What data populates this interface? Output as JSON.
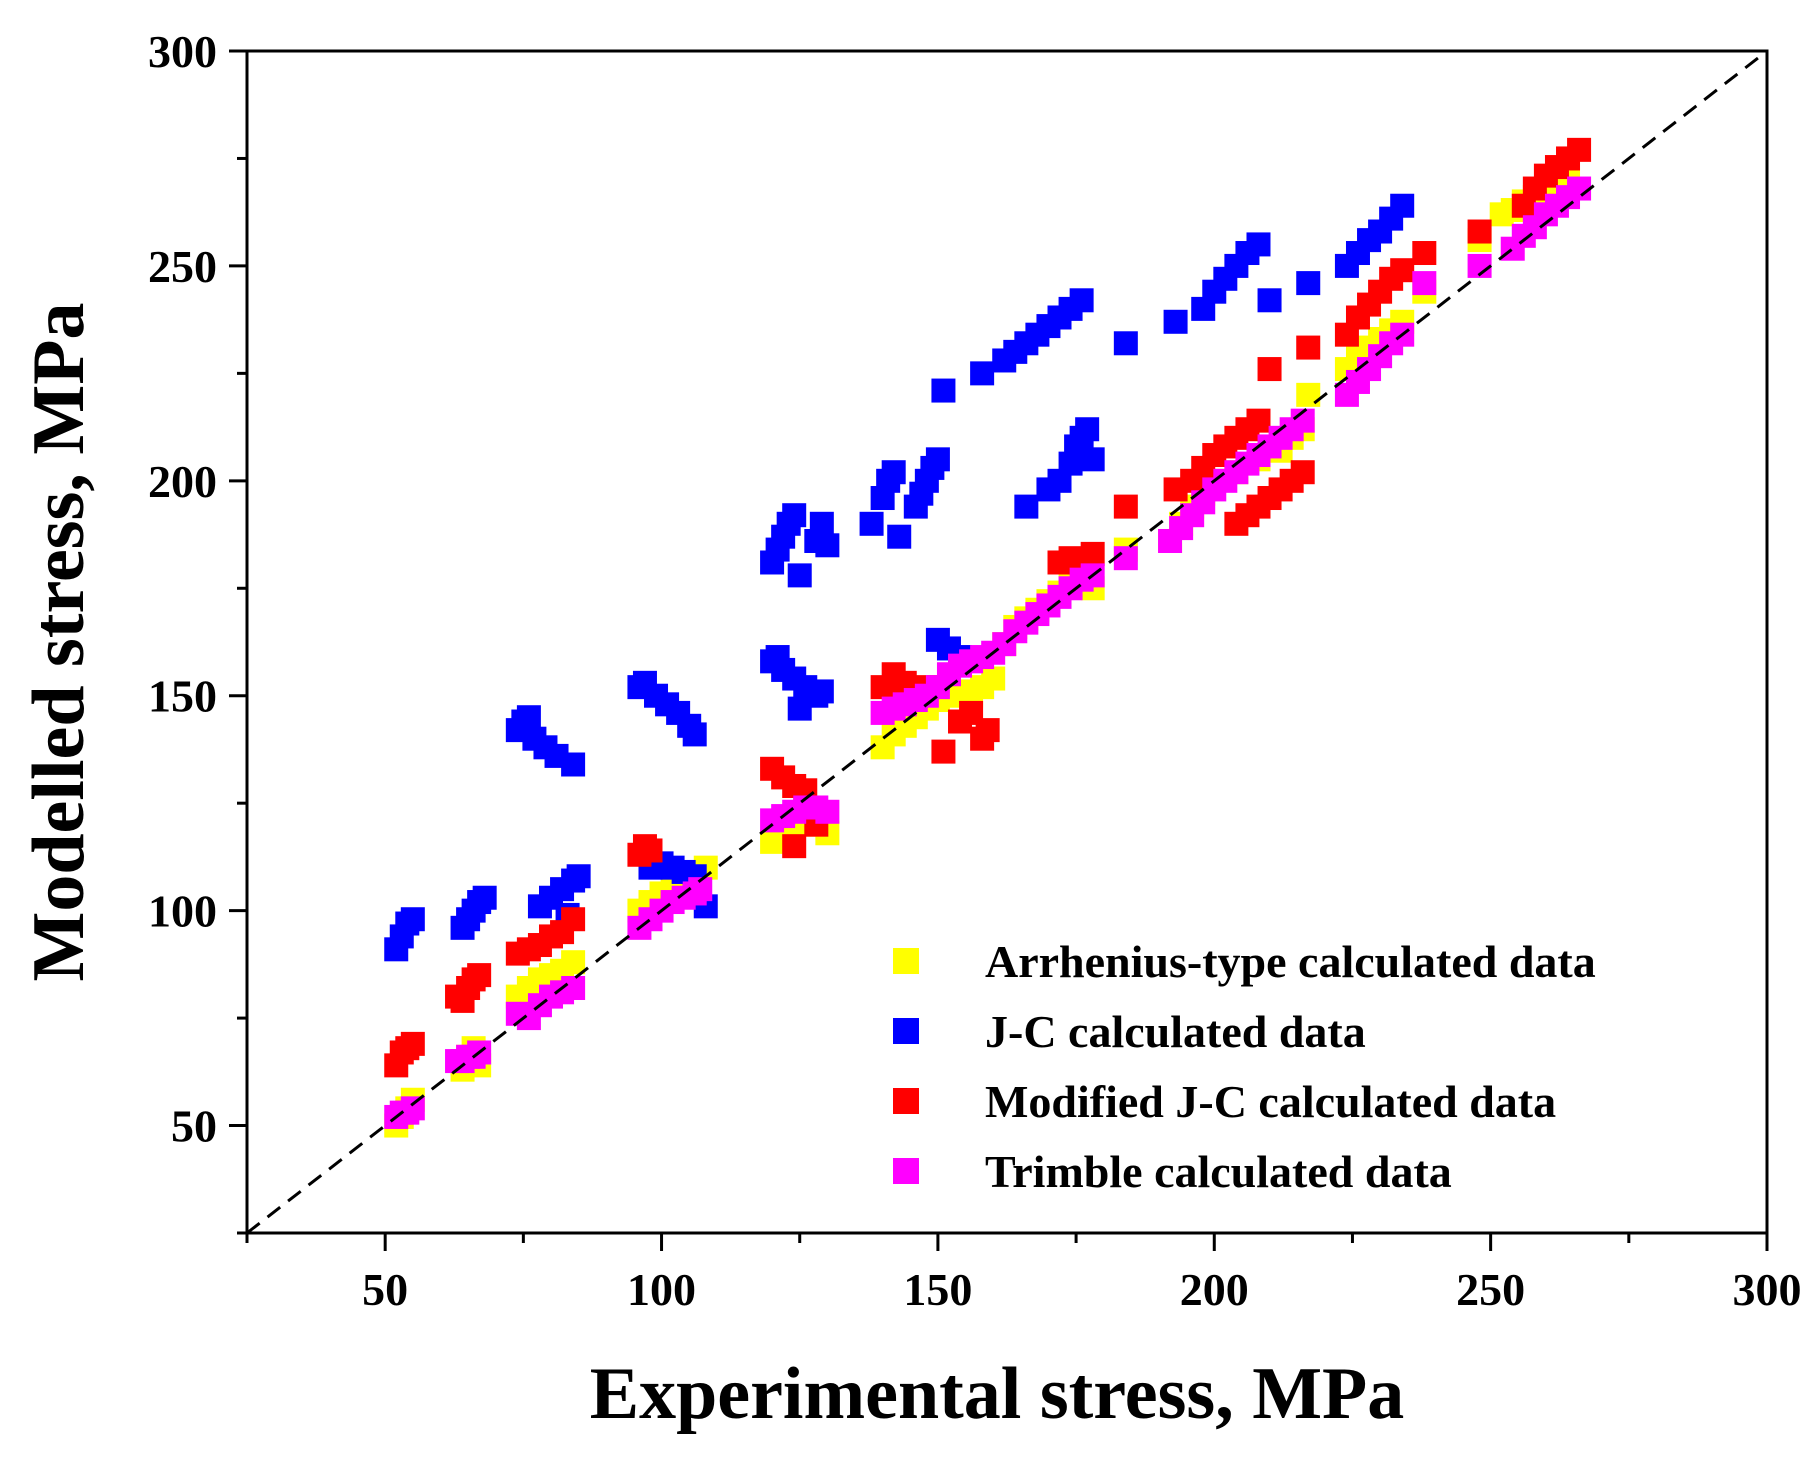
{
  "chart_data": {
    "type": "scatter",
    "title": "",
    "xlabel": "Experimental stress, MPa",
    "ylabel": "Modelled stress, MPa",
    "xlim": [
      25,
      300
    ],
    "ylim": [
      25,
      300
    ],
    "x_ticks": [
      50,
      100,
      150,
      200,
      250,
      300
    ],
    "y_ticks": [
      50,
      100,
      150,
      200,
      250,
      300
    ],
    "x_tick_labels": [
      "50",
      "100",
      "150",
      "200",
      "250",
      "300"
    ],
    "y_tick_labels": [
      "50",
      "100",
      "150",
      "200",
      "250",
      "300"
    ],
    "reference_line": {
      "style": "dashed",
      "color": "#000000",
      "from": [
        25,
        25
      ],
      "to": [
        300,
        300
      ]
    },
    "legend_position": "bottom-right",
    "series": [
      {
        "name": "Arrhenius-type calculated data",
        "color": "#FFFF00",
        "points": [
          [
            52,
            50
          ],
          [
            53,
            52
          ],
          [
            54,
            54
          ],
          [
            55,
            56
          ],
          [
            64,
            63
          ],
          [
            65,
            66
          ],
          [
            66,
            68
          ],
          [
            67,
            64
          ],
          [
            74,
            80
          ],
          [
            76,
            82
          ],
          [
            78,
            84
          ],
          [
            80,
            85
          ],
          [
            82,
            86
          ],
          [
            84,
            88
          ],
          [
            96,
            100
          ],
          [
            98,
            102
          ],
          [
            100,
            104
          ],
          [
            102,
            106
          ],
          [
            104,
            107
          ],
          [
            106,
            108
          ],
          [
            108,
            110
          ],
          [
            120,
            116
          ],
          [
            122,
            118
          ],
          [
            124,
            120
          ],
          [
            126,
            122
          ],
          [
            128,
            120
          ],
          [
            130,
            118
          ],
          [
            140,
            138
          ],
          [
            142,
            141
          ],
          [
            144,
            143
          ],
          [
            146,
            145
          ],
          [
            148,
            147
          ],
          [
            150,
            149
          ],
          [
            152,
            150
          ],
          [
            154,
            151
          ],
          [
            156,
            150
          ],
          [
            158,
            152
          ],
          [
            160,
            154
          ],
          [
            162,
            162
          ],
          [
            164,
            166
          ],
          [
            166,
            168
          ],
          [
            168,
            170
          ],
          [
            170,
            172
          ],
          [
            172,
            174
          ],
          [
            174,
            176
          ],
          [
            176,
            178
          ],
          [
            178,
            175
          ],
          [
            184,
            184
          ],
          [
            192,
            186
          ],
          [
            194,
            190
          ],
          [
            196,
            194
          ],
          [
            198,
            197
          ],
          [
            200,
            200
          ],
          [
            204,
            202
          ],
          [
            208,
            205
          ],
          [
            212,
            207
          ],
          [
            214,
            210
          ],
          [
            216,
            212
          ],
          [
            217,
            220
          ],
          [
            224,
            226
          ],
          [
            226,
            229
          ],
          [
            228,
            231
          ],
          [
            230,
            233
          ],
          [
            232,
            235
          ],
          [
            234,
            237
          ],
          [
            238,
            244
          ],
          [
            248,
            256
          ],
          [
            252,
            262
          ],
          [
            254,
            263
          ],
          [
            256,
            265
          ],
          [
            258,
            266
          ],
          [
            260,
            267
          ],
          [
            262,
            268
          ],
          [
            264,
            270
          ]
        ]
      },
      {
        "name": "J-C calculated data",
        "color": "#0000FF",
        "points": [
          [
            52,
            91
          ],
          [
            53,
            94
          ],
          [
            54,
            97
          ],
          [
            55,
            98
          ],
          [
            64,
            96
          ],
          [
            65,
            98
          ],
          [
            66,
            100
          ],
          [
            67,
            102
          ],
          [
            68,
            103
          ],
          [
            74,
            142
          ],
          [
            75,
            144
          ],
          [
            76,
            145
          ],
          [
            77,
            140
          ],
          [
            79,
            138
          ],
          [
            81,
            136
          ],
          [
            84,
            134
          ],
          [
            78,
            101
          ],
          [
            80,
            103
          ],
          [
            82,
            105
          ],
          [
            84,
            107
          ],
          [
            85,
            108
          ],
          [
            83,
            99
          ],
          [
            96,
            152
          ],
          [
            97,
            153
          ],
          [
            99,
            150
          ],
          [
            101,
            148
          ],
          [
            103,
            146
          ],
          [
            105,
            143
          ],
          [
            106,
            141
          ],
          [
            98,
            110
          ],
          [
            100,
            111
          ],
          [
            102,
            110
          ],
          [
            104,
            109
          ],
          [
            106,
            108
          ],
          [
            108,
            101
          ],
          [
            120,
            158
          ],
          [
            121,
            159
          ],
          [
            122,
            156
          ],
          [
            124,
            154
          ],
          [
            126,
            152
          ],
          [
            128,
            150
          ],
          [
            129,
            151
          ],
          [
            125,
            147
          ],
          [
            120,
            181
          ],
          [
            121,
            184
          ],
          [
            122,
            187
          ],
          [
            123,
            190
          ],
          [
            124,
            192
          ],
          [
            125,
            178
          ],
          [
            128,
            186
          ],
          [
            129,
            190
          ],
          [
            130,
            185
          ],
          [
            138,
            190
          ],
          [
            140,
            196
          ],
          [
            141,
            200
          ],
          [
            142,
            202
          ],
          [
            143,
            187
          ],
          [
            146,
            194
          ],
          [
            147,
            197
          ],
          [
            148,
            200
          ],
          [
            149,
            203
          ],
          [
            150,
            205
          ],
          [
            150,
            163
          ],
          [
            152,
            161
          ],
          [
            154,
            159
          ],
          [
            151,
            221
          ],
          [
            158,
            225
          ],
          [
            162,
            228
          ],
          [
            164,
            230
          ],
          [
            166,
            232
          ],
          [
            168,
            234
          ],
          [
            170,
            236
          ],
          [
            172,
            238
          ],
          [
            174,
            240
          ],
          [
            176,
            242
          ],
          [
            166,
            194
          ],
          [
            170,
            198
          ],
          [
            172,
            200
          ],
          [
            174,
            204
          ],
          [
            175,
            208
          ],
          [
            176,
            210
          ],
          [
            177,
            212
          ],
          [
            178,
            205
          ],
          [
            184,
            232
          ],
          [
            193,
            237
          ],
          [
            198,
            240
          ],
          [
            200,
            244
          ],
          [
            202,
            247
          ],
          [
            204,
            250
          ],
          [
            206,
            253
          ],
          [
            208,
            255
          ],
          [
            210,
            242
          ],
          [
            217,
            246
          ],
          [
            224,
            250
          ],
          [
            226,
            253
          ],
          [
            228,
            256
          ],
          [
            230,
            258
          ],
          [
            232,
            261
          ],
          [
            234,
            264
          ]
        ]
      },
      {
        "name": "Modified J-C calculated data",
        "color": "#FF0000",
        "points": [
          [
            52,
            64
          ],
          [
            53,
            67
          ],
          [
            54,
            68
          ],
          [
            55,
            69
          ],
          [
            63,
            80
          ],
          [
            64,
            79
          ],
          [
            65,
            82
          ],
          [
            66,
            84
          ],
          [
            67,
            85
          ],
          [
            74,
            90
          ],
          [
            76,
            91
          ],
          [
            78,
            92
          ],
          [
            80,
            94
          ],
          [
            82,
            95
          ],
          [
            84,
            98
          ],
          [
            96,
            113
          ],
          [
            97,
            115
          ],
          [
            98,
            114
          ],
          [
            120,
            133
          ],
          [
            122,
            131
          ],
          [
            124,
            129
          ],
          [
            126,
            128
          ],
          [
            124,
            115
          ],
          [
            128,
            120
          ],
          [
            140,
            152
          ],
          [
            142,
            155
          ],
          [
            144,
            153
          ],
          [
            146,
            150
          ],
          [
            148,
            152
          ],
          [
            151,
            137
          ],
          [
            154,
            144
          ],
          [
            156,
            146
          ],
          [
            158,
            140
          ],
          [
            159,
            142
          ],
          [
            172,
            181
          ],
          [
            174,
            182
          ],
          [
            178,
            183
          ],
          [
            184,
            194
          ],
          [
            193,
            198
          ],
          [
            196,
            200
          ],
          [
            198,
            203
          ],
          [
            200,
            206
          ],
          [
            202,
            208
          ],
          [
            204,
            210
          ],
          [
            206,
            212
          ],
          [
            208,
            214
          ],
          [
            204,
            190
          ],
          [
            206,
            192
          ],
          [
            208,
            194
          ],
          [
            210,
            196
          ],
          [
            212,
            198
          ],
          [
            214,
            200
          ],
          [
            216,
            202
          ],
          [
            210,
            226
          ],
          [
            217,
            231
          ],
          [
            224,
            234
          ],
          [
            226,
            238
          ],
          [
            228,
            241
          ],
          [
            230,
            244
          ],
          [
            232,
            247
          ],
          [
            234,
            249
          ],
          [
            238,
            253
          ],
          [
            248,
            258
          ],
          [
            256,
            264
          ],
          [
            258,
            268
          ],
          [
            260,
            271
          ],
          [
            262,
            273
          ],
          [
            264,
            275
          ],
          [
            266,
            277
          ]
        ]
      },
      {
        "name": "Trimble calculated data",
        "color": "#FF00FF",
        "points": [
          [
            52,
            52
          ],
          [
            53,
            53
          ],
          [
            54,
            53
          ],
          [
            55,
            54
          ],
          [
            63,
            65
          ],
          [
            64,
            65
          ],
          [
            65,
            66
          ],
          [
            66,
            66
          ],
          [
            67,
            67
          ],
          [
            74,
            76
          ],
          [
            76,
            75
          ],
          [
            78,
            78
          ],
          [
            80,
            80
          ],
          [
            82,
            81
          ],
          [
            84,
            82
          ],
          [
            96,
            96
          ],
          [
            98,
            98
          ],
          [
            100,
            100
          ],
          [
            102,
            102
          ],
          [
            104,
            103
          ],
          [
            106,
            104
          ],
          [
            107,
            105
          ],
          [
            120,
            121
          ],
          [
            122,
            122
          ],
          [
            124,
            123
          ],
          [
            126,
            124
          ],
          [
            128,
            124
          ],
          [
            130,
            123
          ],
          [
            140,
            146
          ],
          [
            142,
            147
          ],
          [
            144,
            148
          ],
          [
            146,
            149
          ],
          [
            148,
            150
          ],
          [
            150,
            152
          ],
          [
            152,
            155
          ],
          [
            154,
            157
          ],
          [
            156,
            158
          ],
          [
            158,
            159
          ],
          [
            160,
            160
          ],
          [
            162,
            162
          ],
          [
            164,
            165
          ],
          [
            166,
            167
          ],
          [
            168,
            169
          ],
          [
            170,
            171
          ],
          [
            172,
            173
          ],
          [
            174,
            175
          ],
          [
            176,
            177
          ],
          [
            178,
            178
          ],
          [
            184,
            182
          ],
          [
            192,
            186
          ],
          [
            194,
            189
          ],
          [
            196,
            192
          ],
          [
            198,
            195
          ],
          [
            200,
            198
          ],
          [
            202,
            200
          ],
          [
            204,
            202
          ],
          [
            206,
            204
          ],
          [
            208,
            206
          ],
          [
            210,
            208
          ],
          [
            212,
            210
          ],
          [
            214,
            212
          ],
          [
            216,
            214
          ],
          [
            224,
            220
          ],
          [
            226,
            223
          ],
          [
            228,
            226
          ],
          [
            230,
            229
          ],
          [
            232,
            232
          ],
          [
            234,
            234
          ],
          [
            238,
            246
          ],
          [
            248,
            250
          ],
          [
            254,
            254
          ],
          [
            256,
            257
          ],
          [
            258,
            259
          ],
          [
            260,
            262
          ],
          [
            262,
            264
          ],
          [
            264,
            266
          ],
          [
            266,
            268
          ]
        ]
      }
    ]
  }
}
